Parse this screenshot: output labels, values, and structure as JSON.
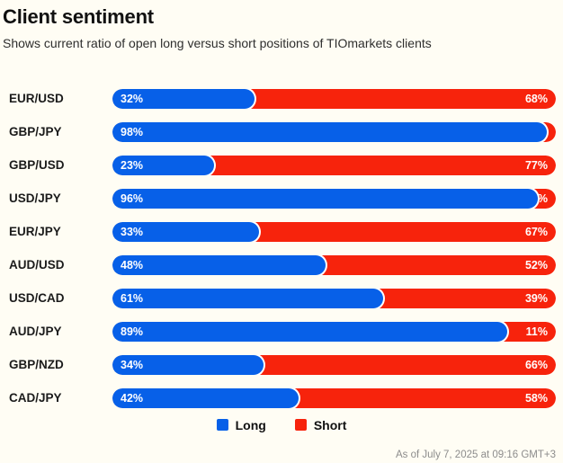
{
  "colors": {
    "background": "#FFFDF4",
    "long": "#0760E8",
    "short": "#F7230C",
    "bar_outline": "#FFFFFF"
  },
  "chart_data": {
    "type": "bar",
    "orientation": "horizontal",
    "stacked": true,
    "title": "Client sentiment",
    "subtitle": "Shows current ratio of open long versus short positions of TIOmarkets clients",
    "categories": [
      "EUR/USD",
      "GBP/JPY",
      "GBP/USD",
      "USD/JPY",
      "EUR/JPY",
      "AUD/USD",
      "USD/CAD",
      "AUD/JPY",
      "GBP/NZD",
      "CAD/JPY"
    ],
    "series": [
      {
        "name": "Long",
        "color": "#0760E8",
        "values": [
          32,
          98,
          23,
          96,
          33,
          48,
          61,
          89,
          34,
          42
        ]
      },
      {
        "name": "Short",
        "color": "#F7230C",
        "values": [
          68,
          2,
          77,
          4,
          67,
          52,
          39,
          11,
          66,
          58
        ]
      }
    ],
    "value_suffix": "%",
    "xlim": [
      0,
      100
    ],
    "grid": false,
    "legend_position": "bottom",
    "footnote": "As of July 7, 2025 at 09:16 GMT+3"
  }
}
